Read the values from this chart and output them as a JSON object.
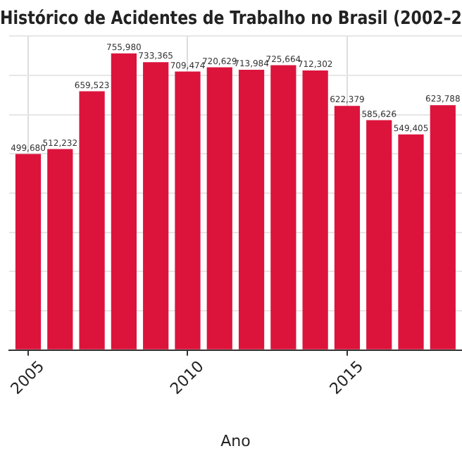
{
  "chart_data": {
    "type": "bar",
    "title": "Histórico de Acidentes de Trabalho no Brasil (2002–2",
    "xlabel": "Ano",
    "x": [
      2005,
      2006,
      2007,
      2008,
      2009,
      2010,
      2011,
      2012,
      2013,
      2014,
      2015,
      2016,
      2017,
      2018
    ],
    "values": [
      499680,
      512232,
      659523,
      755980,
      733365,
      709474,
      720629,
      713984,
      725664,
      712302,
      622379,
      585626,
      549405,
      623788
    ],
    "value_labels": [
      "499,680",
      "512,232",
      "659,523",
      "755,980",
      "733,365",
      "709,474",
      "720,629",
      "713,984",
      "725,664",
      "712,302",
      "622,379",
      "585,626",
      "549,405",
      "623,788"
    ],
    "color": "#dc143c",
    "xlim": [
      2004.4,
      2018.6
    ],
    "xticks": [
      2005,
      2010,
      2015
    ],
    "grid": true,
    "tick_labels": "x"
  }
}
